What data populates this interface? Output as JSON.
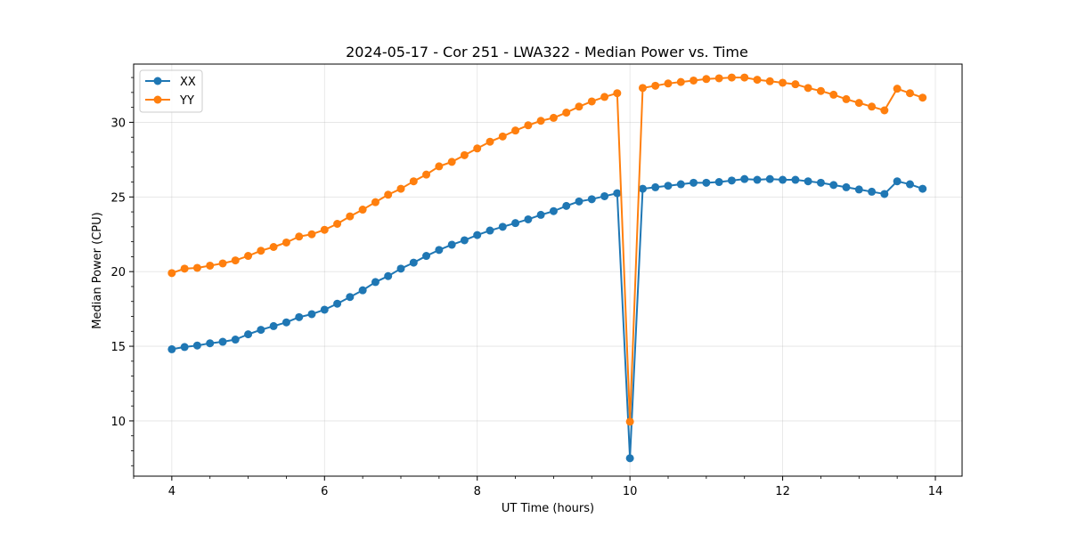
{
  "chart_data": {
    "type": "line",
    "title": "2024-05-17 - Cor 251 - LWA322 - Median Power vs. Time",
    "xlabel": "UT Time (hours)",
    "ylabel": "Median Power (CPU)",
    "xlim": [
      3.5,
      14.35
    ],
    "ylim": [
      6.3,
      33.9
    ],
    "xticks": [
      4,
      6,
      8,
      10,
      12,
      14
    ],
    "xtick_labels": [
      "4",
      "6",
      "8",
      "10",
      "12",
      "14"
    ],
    "yticks": [
      10,
      15,
      20,
      25,
      30
    ],
    "ytick_labels": [
      "10",
      "15",
      "20",
      "25",
      "30"
    ],
    "grid": true,
    "legend_position": "top-left",
    "x": [
      4.0,
      4.167,
      4.333,
      4.5,
      4.667,
      4.833,
      5.0,
      5.167,
      5.333,
      5.5,
      5.667,
      5.833,
      6.0,
      6.167,
      6.333,
      6.5,
      6.667,
      6.833,
      7.0,
      7.167,
      7.333,
      7.5,
      7.667,
      7.833,
      8.0,
      8.167,
      8.333,
      8.5,
      8.667,
      8.833,
      9.0,
      9.167,
      9.333,
      9.5,
      9.667,
      9.833,
      10.0,
      10.167,
      10.333,
      10.5,
      10.667,
      10.833,
      11.0,
      11.167,
      11.333,
      11.5,
      11.667,
      11.833,
      12.0,
      12.167,
      12.333,
      12.5,
      12.667,
      12.833,
      13.0,
      13.167,
      13.333,
      13.5,
      13.667,
      13.833
    ],
    "series": [
      {
        "name": "XX",
        "color": "#1f77b4",
        "values": [
          14.8,
          14.95,
          15.05,
          15.2,
          15.3,
          15.45,
          15.8,
          16.1,
          16.35,
          16.6,
          16.95,
          17.15,
          17.45,
          17.85,
          18.3,
          18.75,
          19.3,
          19.7,
          20.2,
          20.6,
          21.05,
          21.45,
          21.8,
          22.1,
          22.45,
          22.75,
          23.0,
          23.25,
          23.5,
          23.8,
          24.05,
          24.4,
          24.7,
          24.85,
          25.05,
          25.25,
          7.5,
          25.55,
          25.65,
          25.75,
          25.85,
          25.95,
          25.95,
          26.0,
          26.1,
          26.2,
          26.15,
          26.2,
          26.15,
          26.15,
          26.05,
          25.95,
          25.8,
          25.65,
          25.5,
          25.35,
          25.2,
          26.05,
          25.85,
          25.55
        ]
      },
      {
        "name": "YY",
        "color": "#ff7f0e",
        "values": [
          19.9,
          20.2,
          20.25,
          20.4,
          20.55,
          20.75,
          21.05,
          21.4,
          21.65,
          21.95,
          22.35,
          22.5,
          22.8,
          23.2,
          23.7,
          24.15,
          24.65,
          25.15,
          25.55,
          26.05,
          26.5,
          27.05,
          27.35,
          27.8,
          28.25,
          28.7,
          29.05,
          29.45,
          29.8,
          30.1,
          30.3,
          30.65,
          31.05,
          31.4,
          31.7,
          31.95,
          9.95,
          32.3,
          32.45,
          32.6,
          32.7,
          32.8,
          32.9,
          32.95,
          33.0,
          33.0,
          32.85,
          32.75,
          32.65,
          32.55,
          32.3,
          32.1,
          31.85,
          31.55,
          31.3,
          31.05,
          30.8,
          32.25,
          31.95,
          31.65
        ]
      }
    ]
  }
}
